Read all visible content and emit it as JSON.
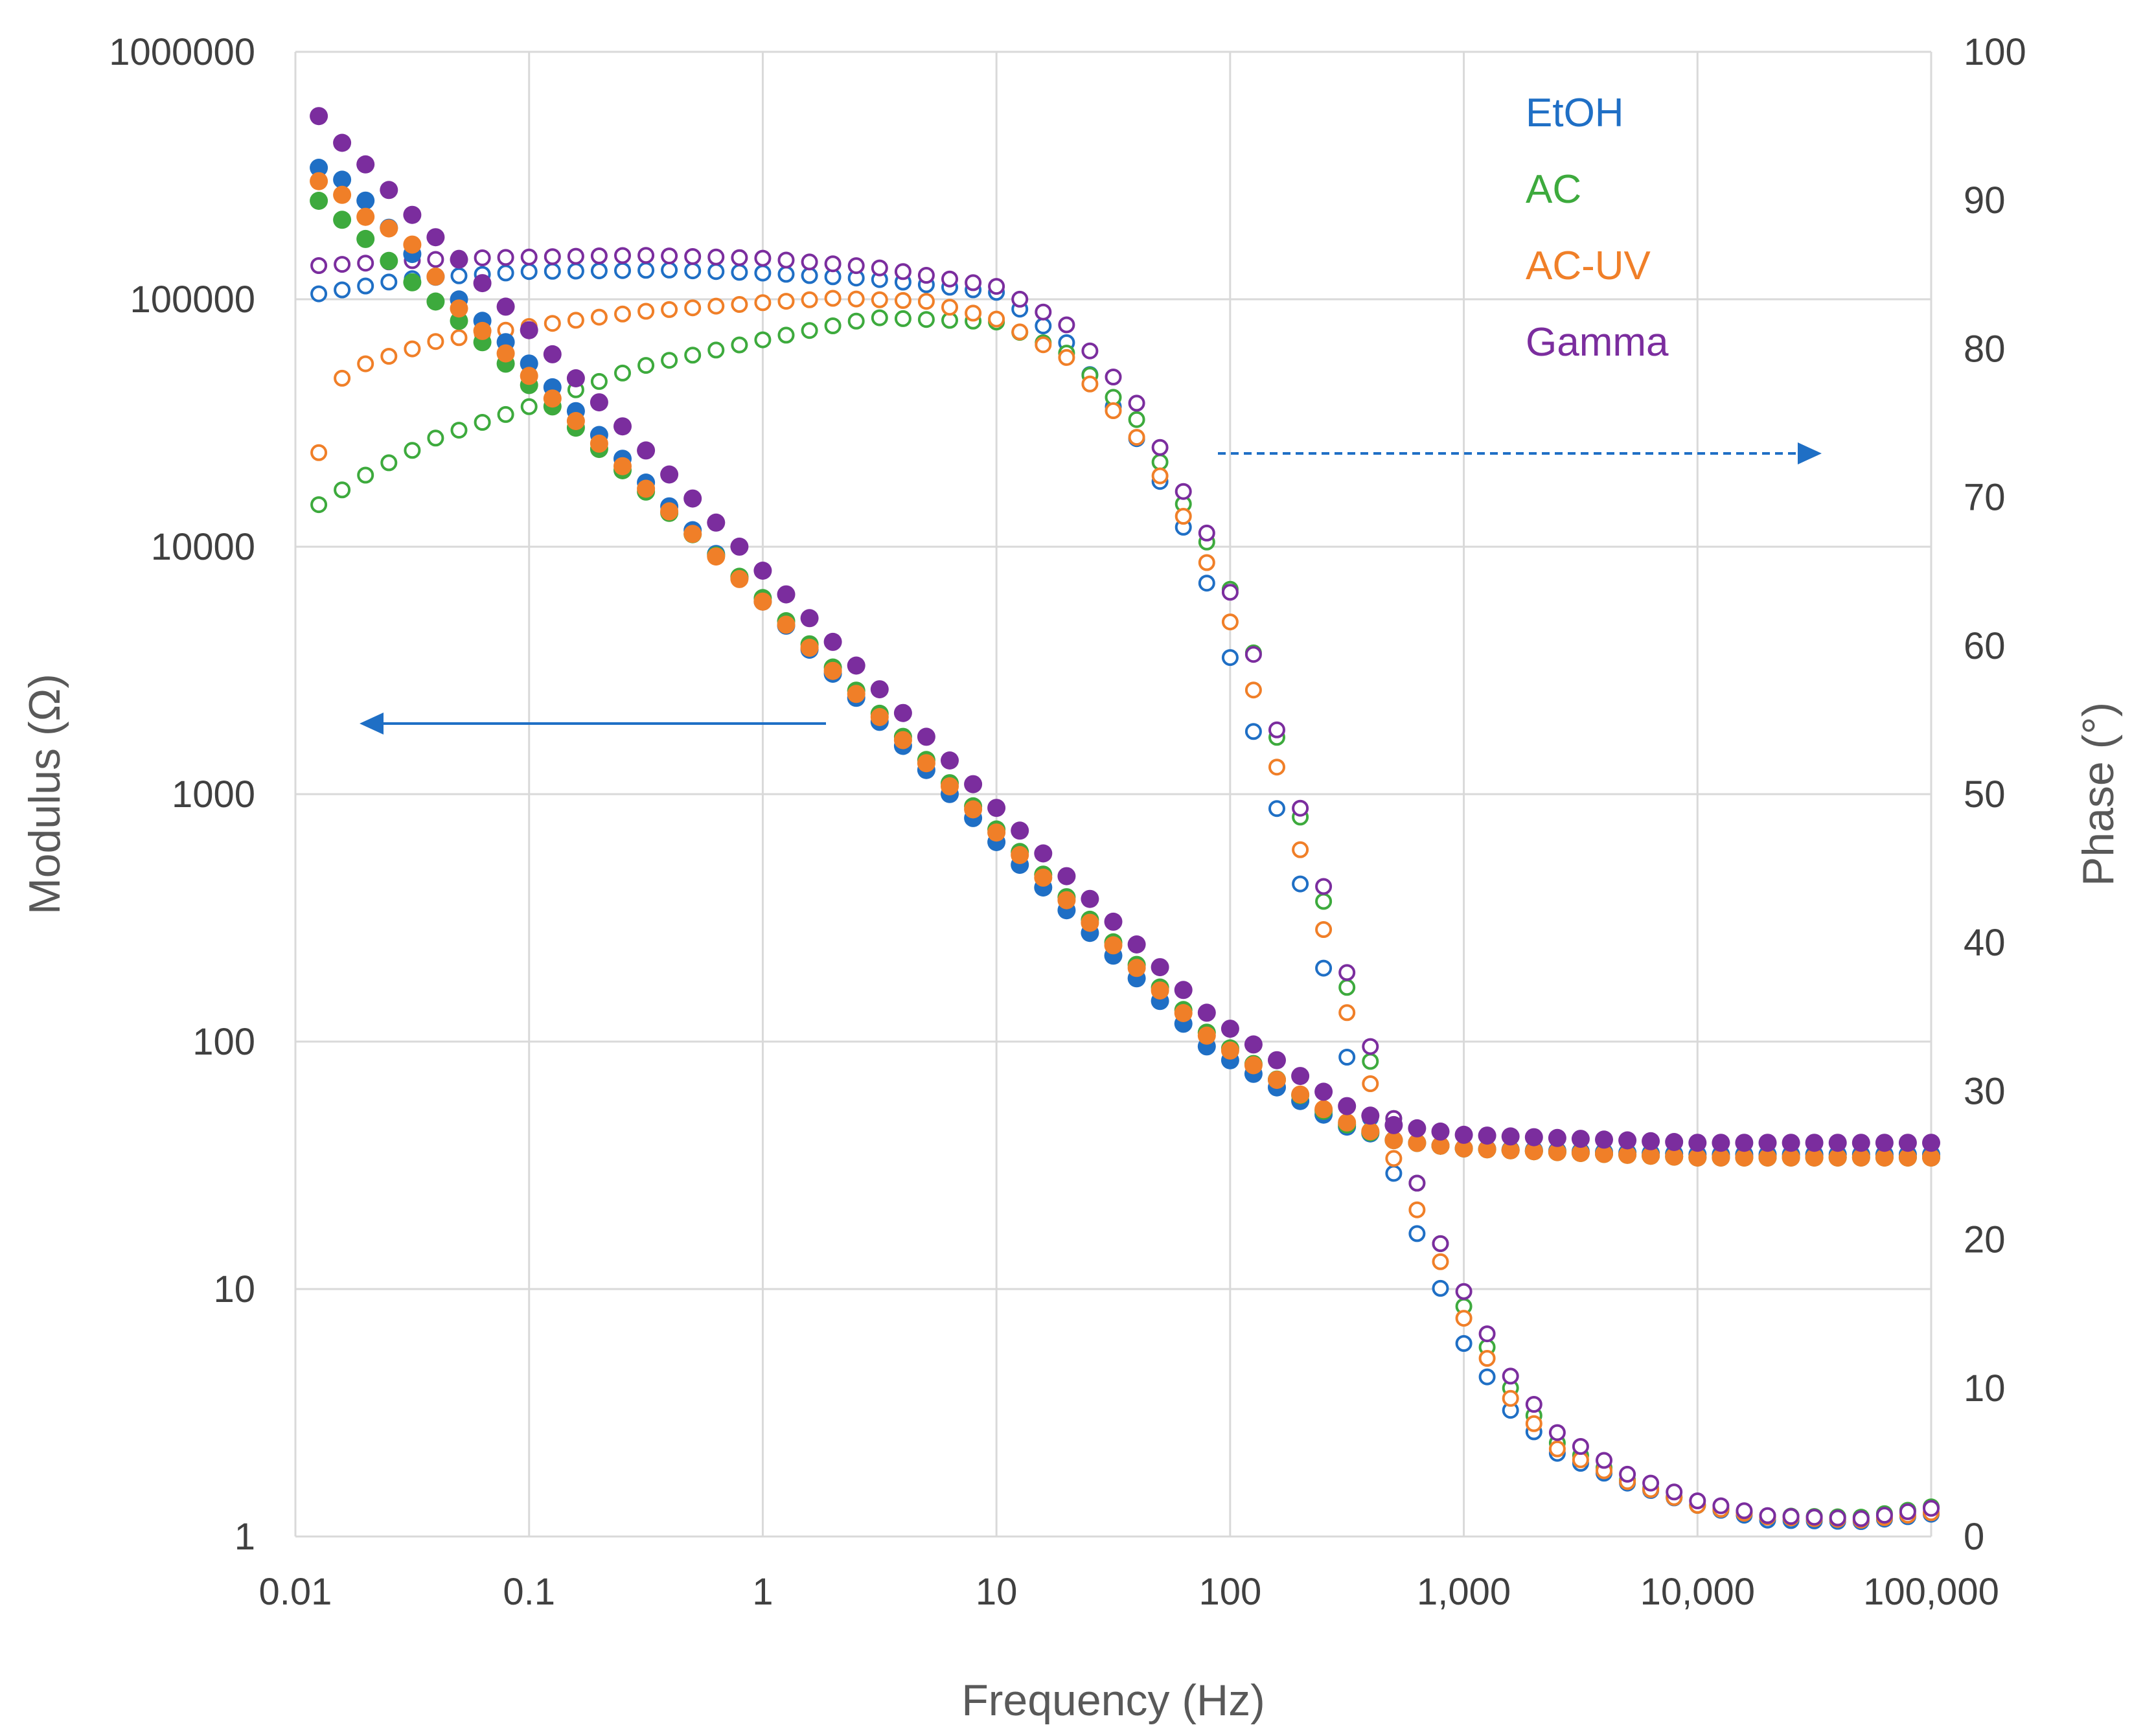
{
  "chart_data": {
    "type": "scatter",
    "title": "",
    "xlabel": "Frequency (Hz)",
    "ylabel_left": "Modulus (Ω)",
    "ylabel_right": "Phase (°)",
    "x_scale": "log",
    "xlim": [
      0.01,
      100000
    ],
    "ylim_left": [
      1,
      1000000
    ],
    "ylim_right": [
      0,
      100
    ],
    "y_left_scale": "log",
    "grid": true,
    "x_tick_labels": [
      "0.01",
      "0.1",
      "1",
      "10",
      "100",
      "1,000",
      "10,000",
      "100,000"
    ],
    "y_left_tick_labels": [
      "1",
      "10",
      "100",
      "1000",
      "10000",
      "100000",
      "1000000"
    ],
    "y_right_tick_labels": [
      "0",
      "10",
      "20",
      "30",
      "40",
      "50",
      "60",
      "70",
      "80",
      "90",
      "100"
    ],
    "legend_position": "top-right",
    "annotations": [
      {
        "type": "arrow",
        "direction": "left",
        "meaning": "modulus data read on left axis"
      },
      {
        "type": "arrow",
        "direction": "right",
        "style": "dashed",
        "meaning": "phase data read on right axis"
      }
    ],
    "series": [
      {
        "name": "EtOH",
        "color": "#1F6FC5",
        "modulus_anchors": [
          [
            0.0126,
            340000
          ],
          [
            0.0158,
            305000
          ],
          [
            0.02,
            250000
          ],
          [
            0.03,
            160000
          ],
          [
            0.05,
            100000
          ],
          [
            0.1,
            55000
          ],
          [
            1,
            6000
          ],
          [
            10,
            640
          ],
          [
            80,
            95
          ],
          [
            300,
            46
          ],
          [
            500,
            40
          ],
          [
            1000,
            37
          ],
          [
            10000,
            35
          ],
          [
            100000,
            35
          ]
        ],
        "phase_anchors": [
          [
            0.0126,
            83.7
          ],
          [
            0.03,
            84.7
          ],
          [
            0.1,
            85.2
          ],
          [
            0.4,
            85.3
          ],
          [
            1,
            85.1
          ],
          [
            3,
            84.7
          ],
          [
            10,
            83.8
          ],
          [
            20,
            80.4
          ],
          [
            40,
            73.9
          ],
          [
            60,
            68.8
          ],
          [
            80,
            64.1
          ],
          [
            100,
            59.2
          ],
          [
            126,
            54.2
          ],
          [
            158,
            49.1
          ],
          [
            200,
            43.9
          ],
          [
            251,
            38.3
          ],
          [
            316,
            32.3
          ],
          [
            400,
            28.1
          ],
          [
            500,
            24.5
          ],
          [
            631,
            20.4
          ],
          [
            800,
            16.6
          ],
          [
            1000,
            13.0
          ],
          [
            1585,
            8.5
          ],
          [
            2512,
            5.6
          ],
          [
            5000,
            3.6
          ],
          [
            10000,
            2.1
          ],
          [
            20000,
            1.1
          ],
          [
            50000,
            1.0
          ],
          [
            100000,
            1.5
          ]
        ]
      },
      {
        "name": "AC",
        "color": "#3DAA3D",
        "modulus_anchors": [
          [
            0.0126,
            250000
          ],
          [
            0.0158,
            210000
          ],
          [
            0.02,
            175000
          ],
          [
            0.03,
            122000
          ],
          [
            0.05,
            82000
          ],
          [
            0.1,
            45000
          ],
          [
            1,
            6200
          ],
          [
            10,
            720
          ],
          [
            80,
            108
          ],
          [
            300,
            47
          ],
          [
            500,
            40
          ],
          [
            1000,
            37
          ],
          [
            10000,
            34
          ],
          [
            100000,
            34
          ]
        ],
        "phase_anchors": [
          [
            0.0126,
            69.5
          ],
          [
            0.02,
            71.5
          ],
          [
            0.04,
            74.0
          ],
          [
            0.1,
            76.1
          ],
          [
            0.3,
            78.8
          ],
          [
            1,
            80.6
          ],
          [
            3,
            82.1
          ],
          [
            10,
            81.8
          ],
          [
            20,
            79.7
          ],
          [
            40,
            75.2
          ],
          [
            60,
            70.1
          ],
          [
            80,
            66.9
          ],
          [
            100,
            63.8
          ],
          [
            126,
            59.5
          ],
          [
            158,
            53.9
          ],
          [
            200,
            48.4
          ],
          [
            251,
            42.8
          ],
          [
            316,
            37.0
          ],
          [
            400,
            31.9
          ],
          [
            500,
            28.2
          ],
          [
            631,
            23.8
          ],
          [
            800,
            19.6
          ],
          [
            1000,
            15.5
          ],
          [
            1585,
            10.0
          ],
          [
            2512,
            6.3
          ],
          [
            5000,
            3.8
          ],
          [
            10000,
            2.1
          ],
          [
            20000,
            1.4
          ],
          [
            50000,
            1.3
          ],
          [
            100000,
            2.0
          ]
        ]
      },
      {
        "name": "AC-UV",
        "color": "#F07F28",
        "modulus_anchors": [
          [
            0.0126,
            300000
          ],
          [
            0.0158,
            265000
          ],
          [
            0.02,
            215000
          ],
          [
            0.03,
            178000
          ],
          [
            0.05,
            92000
          ],
          [
            0.1,
            49000
          ],
          [
            1,
            6000
          ],
          [
            10,
            700
          ],
          [
            80,
            105
          ],
          [
            300,
            48
          ],
          [
            500,
            40
          ],
          [
            1000,
            37
          ],
          [
            10000,
            34
          ],
          [
            100000,
            34
          ]
        ],
        "phase_anchors": [
          [
            0.0126,
            73.0
          ],
          [
            0.0158,
            78.0
          ],
          [
            0.02,
            79.0
          ],
          [
            0.04,
            80.5
          ],
          [
            0.1,
            81.5
          ],
          [
            0.3,
            82.5
          ],
          [
            1,
            83.1
          ],
          [
            2,
            83.4
          ],
          [
            5,
            83.2
          ],
          [
            10,
            82.0
          ],
          [
            20,
            79.4
          ],
          [
            40,
            74.0
          ],
          [
            60,
            69.4
          ],
          [
            80,
            65.5
          ],
          [
            100,
            61.6
          ],
          [
            126,
            57.0
          ],
          [
            158,
            51.9
          ],
          [
            200,
            46.2
          ],
          [
            251,
            40.9
          ],
          [
            316,
            35.3
          ],
          [
            400,
            30.4
          ],
          [
            500,
            25.5
          ],
          [
            631,
            22.0
          ],
          [
            800,
            18.4
          ],
          [
            1000,
            14.7
          ],
          [
            1585,
            9.3
          ],
          [
            2512,
            5.9
          ],
          [
            5000,
            3.7
          ],
          [
            10000,
            2.1
          ],
          [
            20000,
            1.3
          ],
          [
            50000,
            1.1
          ],
          [
            100000,
            1.6
          ]
        ]
      },
      {
        "name": "Gamma",
        "color": "#7B2D9E",
        "modulus_anchors": [
          [
            0.0126,
            550000
          ],
          [
            0.0158,
            430000
          ],
          [
            0.02,
            350000
          ],
          [
            0.03,
            230000
          ],
          [
            0.05,
            145000
          ],
          [
            0.1,
            75000
          ],
          [
            1,
            8000
          ],
          [
            10,
            880
          ],
          [
            80,
            130
          ],
          [
            300,
            56
          ],
          [
            500,
            46
          ],
          [
            1000,
            42
          ],
          [
            10000,
            39
          ],
          [
            100000,
            39
          ]
        ],
        "phase_anchors": [
          [
            0.0126,
            85.6
          ],
          [
            0.05,
            86.1
          ],
          [
            0.3,
            86.3
          ],
          [
            1,
            86.1
          ],
          [
            3,
            85.5
          ],
          [
            10,
            84.2
          ],
          [
            20,
            81.6
          ],
          [
            40,
            76.3
          ],
          [
            60,
            71.0
          ],
          [
            80,
            67.5
          ],
          [
            100,
            63.6
          ],
          [
            126,
            59.4
          ],
          [
            158,
            54.4
          ],
          [
            200,
            49.0
          ],
          [
            251,
            43.8
          ],
          [
            316,
            38.0
          ],
          [
            400,
            32.9
          ],
          [
            500,
            28.2
          ],
          [
            631,
            23.8
          ],
          [
            800,
            19.6
          ],
          [
            1000,
            16.5
          ],
          [
            1585,
            10.8
          ],
          [
            2512,
            7.0
          ],
          [
            5000,
            4.2
          ],
          [
            10000,
            2.4
          ],
          [
            20000,
            1.4
          ],
          [
            50000,
            1.2
          ],
          [
            100000,
            1.9
          ]
        ]
      }
    ]
  }
}
